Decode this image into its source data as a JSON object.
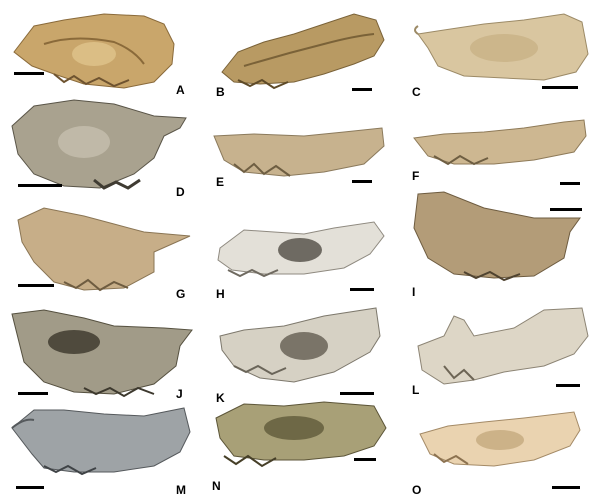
{
  "panels": [
    {
      "id": "A",
      "label": "A",
      "tone": "#c9a66b",
      "tone_dark": "#8a6a3a"
    },
    {
      "id": "B",
      "label": "B",
      "tone": "#b89a63",
      "tone_dark": "#7a6238"
    },
    {
      "id": "C",
      "label": "C",
      "tone": "#d9c6a0",
      "tone_dark": "#9c8a66"
    },
    {
      "id": "D",
      "label": "D",
      "tone": "#a9a28f",
      "tone_dark": "#5a5548"
    },
    {
      "id": "E",
      "label": "E",
      "tone": "#c7b28e",
      "tone_dark": "#8b7a5c"
    },
    {
      "id": "F",
      "label": "F",
      "tone": "#cdb791",
      "tone_dark": "#8e7a58"
    },
    {
      "id": "G",
      "label": "G",
      "tone": "#c7ae88",
      "tone_dark": "#8a7554"
    },
    {
      "id": "H",
      "label": "H",
      "tone": "#e3e0d8",
      "tone_dark": "#8f8a80"
    },
    {
      "id": "I",
      "label": "I",
      "tone": "#b39c78",
      "tone_dark": "#6e5c40"
    },
    {
      "id": "J",
      "label": "J",
      "tone": "#a19b88",
      "tone_dark": "#55503f"
    },
    {
      "id": "K",
      "label": "K",
      "tone": "#d6d1c4",
      "tone_dark": "#7d786c"
    },
    {
      "id": "L",
      "label": "L",
      "tone": "#ddd6c6",
      "tone_dark": "#8c8474"
    },
    {
      "id": "M",
      "label": "M",
      "tone": "#9ea3a6",
      "tone_dark": "#55595c"
    },
    {
      "id": "N",
      "label": "N",
      "tone": "#a8a077",
      "tone_dark": "#5c5538"
    },
    {
      "id": "O",
      "label": "O",
      "tone": "#ead3b0",
      "tone_dark": "#a48a66"
    }
  ]
}
